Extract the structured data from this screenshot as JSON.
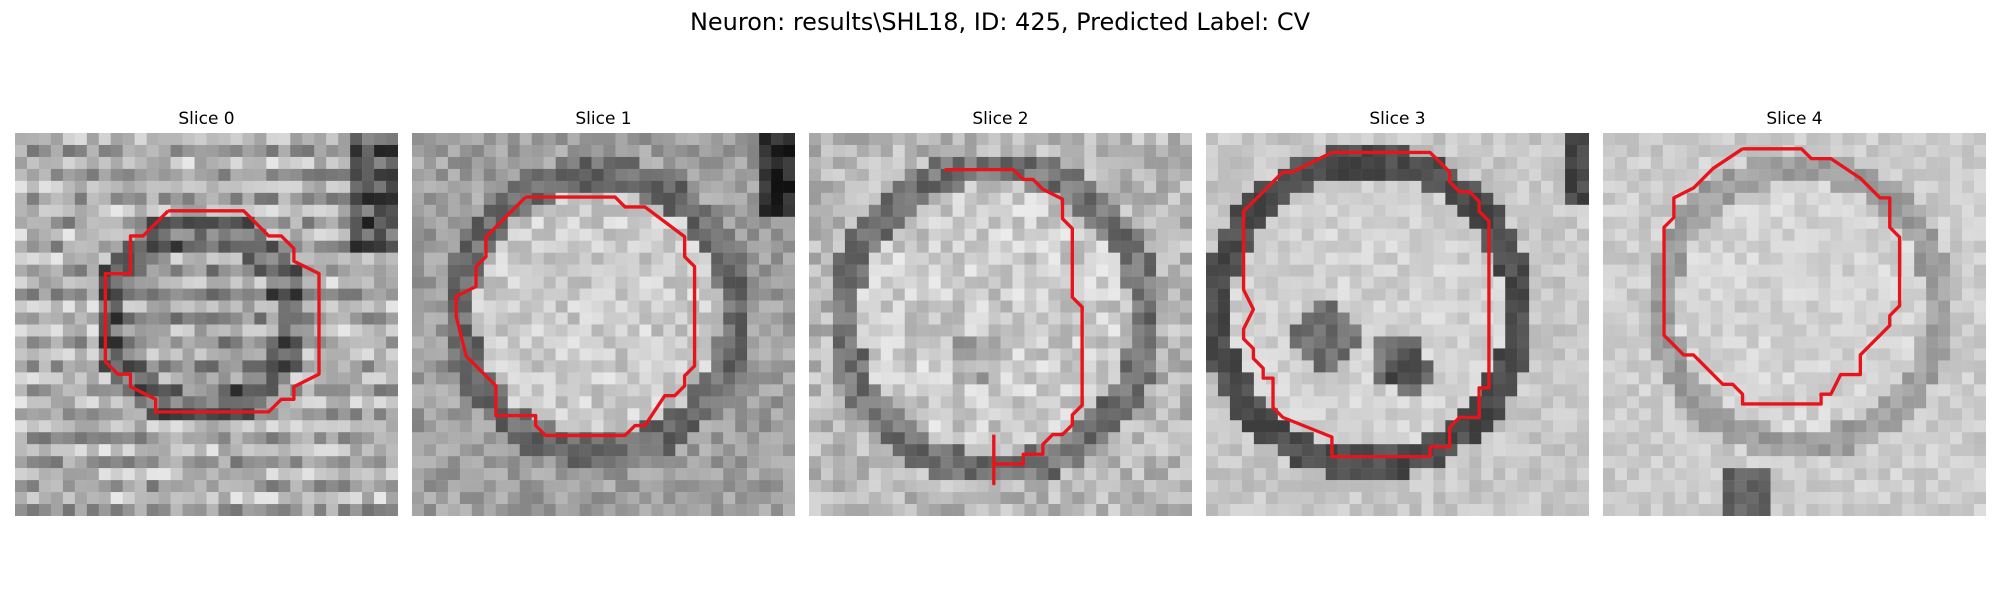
{
  "figure": {
    "title": "Neuron: results\\SHL18, ID: 425, Predicted Label: CV",
    "contour_color": "#e8141c"
  },
  "slices": [
    {
      "title": "Slice 0"
    },
    {
      "title": "Slice 1"
    },
    {
      "title": "Slice 2"
    },
    {
      "title": "Slice 3"
    },
    {
      "title": "Slice 4"
    }
  ]
}
